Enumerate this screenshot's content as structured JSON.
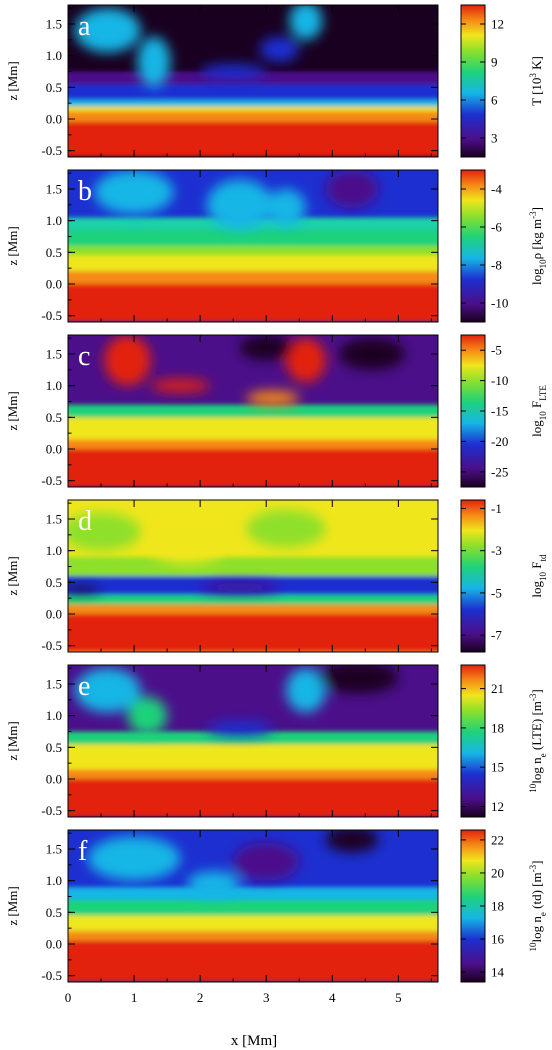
{
  "figure": {
    "x_axis_label": "x [Mm]",
    "x_ticks": [
      "0",
      "1",
      "2",
      "3",
      "4",
      "5"
    ]
  },
  "chart_data": [
    {
      "type": "heatmap",
      "panel": "a",
      "xlabel": "",
      "ylabel": "z [Mm]",
      "xlim": [
        0,
        5.6
      ],
      "ylim": [
        -0.6,
        1.8
      ],
      "yticks": [
        "1.5",
        "1.0",
        "0.5",
        "0.0",
        "-0.5"
      ],
      "colorbar": {
        "label_main": "T [10",
        "label_sup": "3",
        "label_end": " K]",
        "range": [
          1.5,
          13.5
        ],
        "ticks": [
          "12",
          "9",
          "6",
          "3"
        ]
      }
    },
    {
      "type": "heatmap",
      "panel": "b",
      "xlabel": "",
      "ylabel": "z [Mm]",
      "xlim": [
        0,
        5.6
      ],
      "ylim": [
        -0.6,
        1.8
      ],
      "yticks": [
        "1.5",
        "1.0",
        "0.5",
        "0.0",
        "-0.5"
      ],
      "colorbar": {
        "label_main": "log",
        "label_sub": "10",
        "label_rest": "ρ [kg m",
        "label_sup": "-3",
        "label_end": "]",
        "range": [
          -11,
          -3
        ],
        "ticks": [
          "-4",
          "-6",
          "-8",
          "-10"
        ]
      }
    },
    {
      "type": "heatmap",
      "panel": "c",
      "xlabel": "",
      "ylabel": "z [Mm]",
      "xlim": [
        0,
        5.6
      ],
      "ylim": [
        -0.6,
        1.8
      ],
      "yticks": [
        "1.5",
        "1.0",
        "0.5",
        "0.0",
        "-0.5"
      ],
      "colorbar": {
        "label_main": "log",
        "label_sub": "10",
        "label_rest": " F",
        "label_sub2": "LTE",
        "range": [
          -27.5,
          -2.5
        ],
        "ticks": [
          "-5",
          "-10",
          "-15",
          "-20",
          "-25"
        ]
      }
    },
    {
      "type": "heatmap",
      "panel": "d",
      "xlabel": "",
      "ylabel": "z [Mm]",
      "xlim": [
        0,
        5.6
      ],
      "ylim": [
        -0.6,
        1.8
      ],
      "yticks": [
        "1.5",
        "1.0",
        "0.5",
        "0.0",
        "-0.5"
      ],
      "colorbar": {
        "label_main": "log",
        "label_sub": "10",
        "label_rest": " F",
        "label_sub2": "td",
        "range": [
          -7.8,
          -0.6
        ],
        "ticks": [
          "-1",
          "-3",
          "-5",
          "-7"
        ]
      }
    },
    {
      "type": "heatmap",
      "panel": "e",
      "xlabel": "",
      "ylabel": "z [Mm]",
      "xlim": [
        0,
        5.6
      ],
      "ylim": [
        -0.6,
        1.8
      ],
      "yticks": [
        "1.5",
        "1.0",
        "0.5",
        "0.0",
        "-0.5"
      ],
      "colorbar": {
        "label_pre": "10",
        "label_main": "log n",
        "label_sub": "e",
        "label_rest": " (LTE) [m",
        "label_sup": "-3",
        "label_end": "]",
        "range": [
          11.2,
          22.8
        ],
        "ticks": [
          "21",
          "18",
          "15",
          "12"
        ]
      }
    },
    {
      "type": "heatmap",
      "panel": "f",
      "xlabel": "x [Mm]",
      "ylabel": "z [Mm]",
      "xlim": [
        0,
        5.6
      ],
      "ylim": [
        -0.6,
        1.8
      ],
      "yticks": [
        "1.5",
        "1.0",
        "0.5",
        "0.0",
        "-0.5"
      ],
      "colorbar": {
        "label_pre": "10",
        "label_main": "log n",
        "label_sub": "e",
        "label_rest": " (td) [m",
        "label_sup": "-3",
        "label_end": "]",
        "range": [
          13.4,
          22.6
        ],
        "ticks": [
          "22",
          "20",
          "18",
          "16",
          "14"
        ]
      }
    }
  ]
}
